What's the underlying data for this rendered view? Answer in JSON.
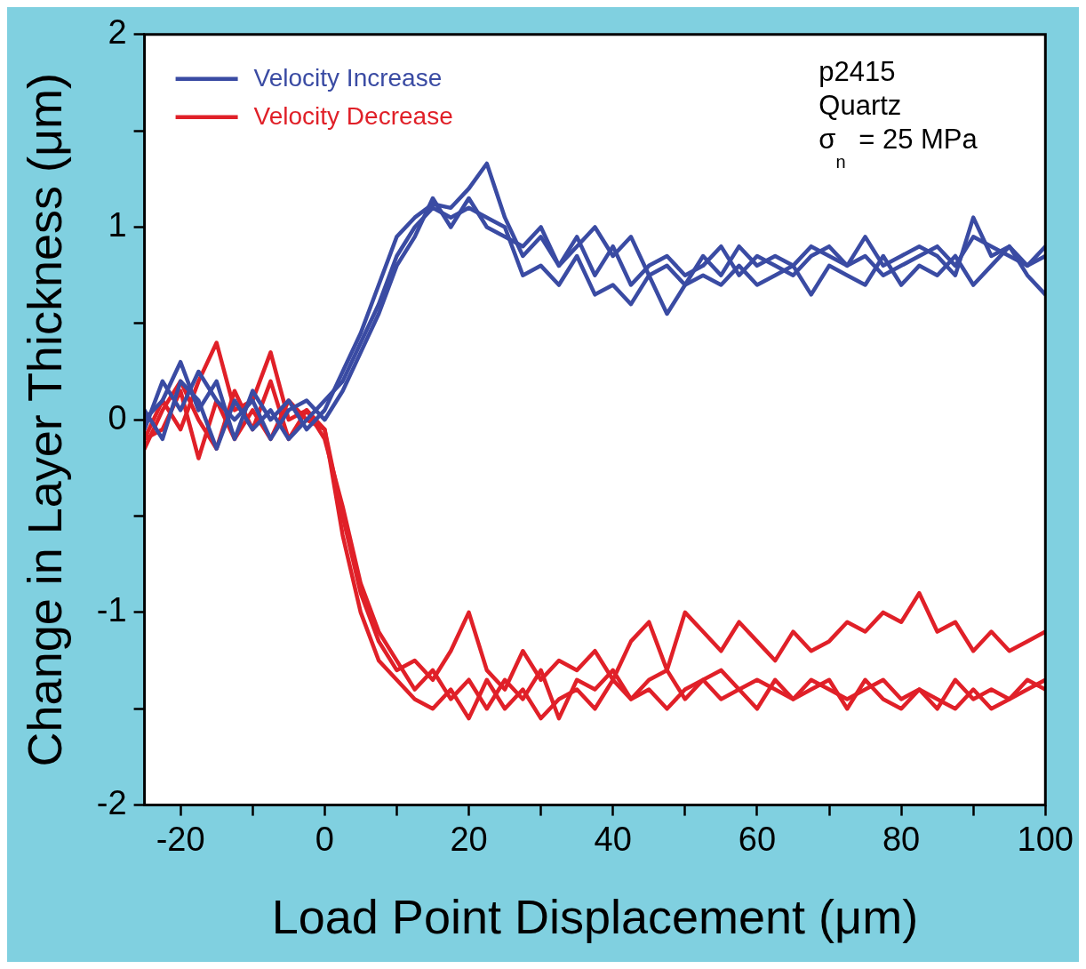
{
  "chart_data": {
    "type": "line",
    "xlabel": "Load Point Displacement (μm)",
    "ylabel": "Change in Layer Thickness (μm)",
    "x": [
      -25,
      -22.5,
      -20,
      -17.5,
      -15,
      -12.5,
      -10,
      -7.5,
      -5,
      -2.5,
      0,
      2.5,
      5,
      7.5,
      10,
      12.5,
      15,
      17.5,
      20,
      22.5,
      25,
      27.5,
      30,
      32.5,
      35,
      37.5,
      40,
      42.5,
      45,
      47.5,
      50,
      52.5,
      55,
      57.5,
      60,
      62.5,
      65,
      67.5,
      70,
      72.5,
      75,
      77.5,
      80,
      82.5,
      85,
      87.5,
      90,
      92.5,
      95,
      97.5,
      100
    ],
    "xlim": [
      -25,
      100
    ],
    "xticks": [
      -20,
      {
        "value": -10,
        "label": null
      },
      0,
      {
        "value": 10,
        "label": null
      },
      20,
      {
        "value": 30,
        "label": null
      },
      40,
      {
        "value": 50,
        "label": null
      },
      60,
      {
        "value": 70,
        "label": null
      },
      80,
      {
        "value": 90,
        "label": null
      },
      100
    ],
    "ylim": [
      -2,
      2
    ],
    "yticks": [
      -2,
      {
        "value": -1.5,
        "label": null
      },
      -1,
      {
        "value": -0.5,
        "label": null
      },
      0,
      {
        "value": 0.5,
        "label": null
      },
      1,
      {
        "value": 1.5,
        "label": null
      },
      2
    ],
    "grid": false,
    "legend": "top left",
    "marker": "none",
    "line_style": "solid",
    "annotations": [
      "p2415",
      "Quartz",
      "σ$_{n}$ = 25 MPa"
    ],
    "series": [
      {
        "name": "Velocity Increase",
        "color": "#3a4ba3",
        "values": [
          0.0,
          0.1,
          0.3,
          0.05,
          0.2,
          -0.1,
          0.15,
          0.0,
          0.1,
          -0.05,
          0.05,
          0.25,
          0.45,
          0.7,
          0.95,
          1.05,
          1.12,
          1.1,
          1.2,
          1.33,
          1.05,
          0.85,
          0.95,
          0.8,
          0.9,
          1.0,
          0.85,
          0.95,
          0.75,
          0.8,
          0.7,
          0.85,
          0.75,
          0.9,
          0.8,
          0.85,
          0.8,
          0.9,
          0.85,
          0.8,
          0.95,
          0.8,
          0.85,
          0.9,
          0.85,
          0.75,
          1.05,
          0.85,
          0.9,
          0.8,
          0.9
        ]
      },
      {
        "color": "#3a4ba3",
        "values": [
          0.05,
          -0.1,
          0.2,
          0.1,
          -0.15,
          0.1,
          -0.05,
          0.05,
          -0.1,
          0.0,
          0.1,
          0.2,
          0.4,
          0.6,
          0.85,
          1.0,
          1.1,
          1.05,
          1.1,
          1.05,
          1.0,
          0.75,
          0.8,
          0.7,
          0.85,
          0.65,
          0.7,
          0.6,
          0.75,
          0.55,
          0.7,
          0.75,
          0.7,
          0.8,
          0.7,
          0.75,
          0.8,
          0.65,
          0.8,
          0.75,
          0.7,
          0.85,
          0.7,
          0.8,
          0.75,
          0.85,
          0.7,
          0.8,
          0.9,
          0.75,
          0.65
        ]
      },
      {
        "color": "#3a4ba3",
        "values": [
          -0.05,
          0.2,
          0.05,
          0.25,
          0.1,
          0.0,
          0.1,
          -0.1,
          0.05,
          0.1,
          0.0,
          0.15,
          0.35,
          0.55,
          0.8,
          0.95,
          1.15,
          1.0,
          1.15,
          1.0,
          0.95,
          0.9,
          1.0,
          0.8,
          0.95,
          0.75,
          0.9,
          0.7,
          0.8,
          0.85,
          0.75,
          0.8,
          0.9,
          0.75,
          0.85,
          0.8,
          0.75,
          0.85,
          0.9,
          0.8,
          0.85,
          0.75,
          0.8,
          0.85,
          0.9,
          0.8,
          0.95,
          0.9,
          0.85,
          0.8,
          0.85
        ]
      },
      {
        "name": "Velocity Decrease",
        "color": "#e02028",
        "values": [
          -0.1,
          0.1,
          -0.05,
          0.2,
          0.4,
          0.05,
          0.1,
          0.35,
          0.0,
          0.05,
          -0.05,
          -0.5,
          -0.9,
          -1.15,
          -1.3,
          -1.25,
          -1.35,
          -1.2,
          -1.0,
          -1.3,
          -1.4,
          -1.2,
          -1.35,
          -1.25,
          -1.3,
          -1.2,
          -1.35,
          -1.15,
          -1.05,
          -1.3,
          -1.0,
          -1.1,
          -1.2,
          -1.05,
          -1.15,
          -1.25,
          -1.1,
          -1.2,
          -1.15,
          -1.05,
          -1.1,
          -1.0,
          -1.05,
          -0.9,
          -1.1,
          -1.05,
          -1.2,
          -1.1,
          -1.2,
          -1.15,
          -1.1
        ]
      },
      {
        "color": "#e02028",
        "values": [
          -0.1,
          -0.05,
          0.15,
          -0.2,
          0.1,
          -0.1,
          0.05,
          -0.1,
          0.1,
          0.0,
          -0.05,
          -0.6,
          -1.0,
          -1.25,
          -1.35,
          -1.45,
          -1.5,
          -1.4,
          -1.55,
          -1.35,
          -1.5,
          -1.4,
          -1.55,
          -1.45,
          -1.4,
          -1.5,
          -1.35,
          -1.45,
          -1.4,
          -1.5,
          -1.4,
          -1.35,
          -1.45,
          -1.4,
          -1.35,
          -1.4,
          -1.45,
          -1.35,
          -1.4,
          -1.45,
          -1.4,
          -1.35,
          -1.45,
          -1.4,
          -1.5,
          -1.35,
          -1.45,
          -1.4,
          -1.45,
          -1.35,
          -1.4
        ]
      },
      {
        "color": "#e02028",
        "values": [
          -0.15,
          0.05,
          0.2,
          0.0,
          -0.15,
          0.15,
          -0.05,
          0.2,
          -0.1,
          0.05,
          -0.1,
          -0.45,
          -0.85,
          -1.1,
          -1.25,
          -1.4,
          -1.3,
          -1.45,
          -1.35,
          -1.5,
          -1.35,
          -1.45,
          -1.3,
          -1.55,
          -1.35,
          -1.4,
          -1.3,
          -1.45,
          -1.35,
          -1.3,
          -1.45,
          -1.35,
          -1.3,
          -1.4,
          -1.5,
          -1.35,
          -1.45,
          -1.4,
          -1.35,
          -1.5,
          -1.35,
          -1.45,
          -1.5,
          -1.4,
          -1.45,
          -1.5,
          -1.4,
          -1.5,
          -1.45,
          -1.4,
          -1.35
        ]
      }
    ]
  }
}
